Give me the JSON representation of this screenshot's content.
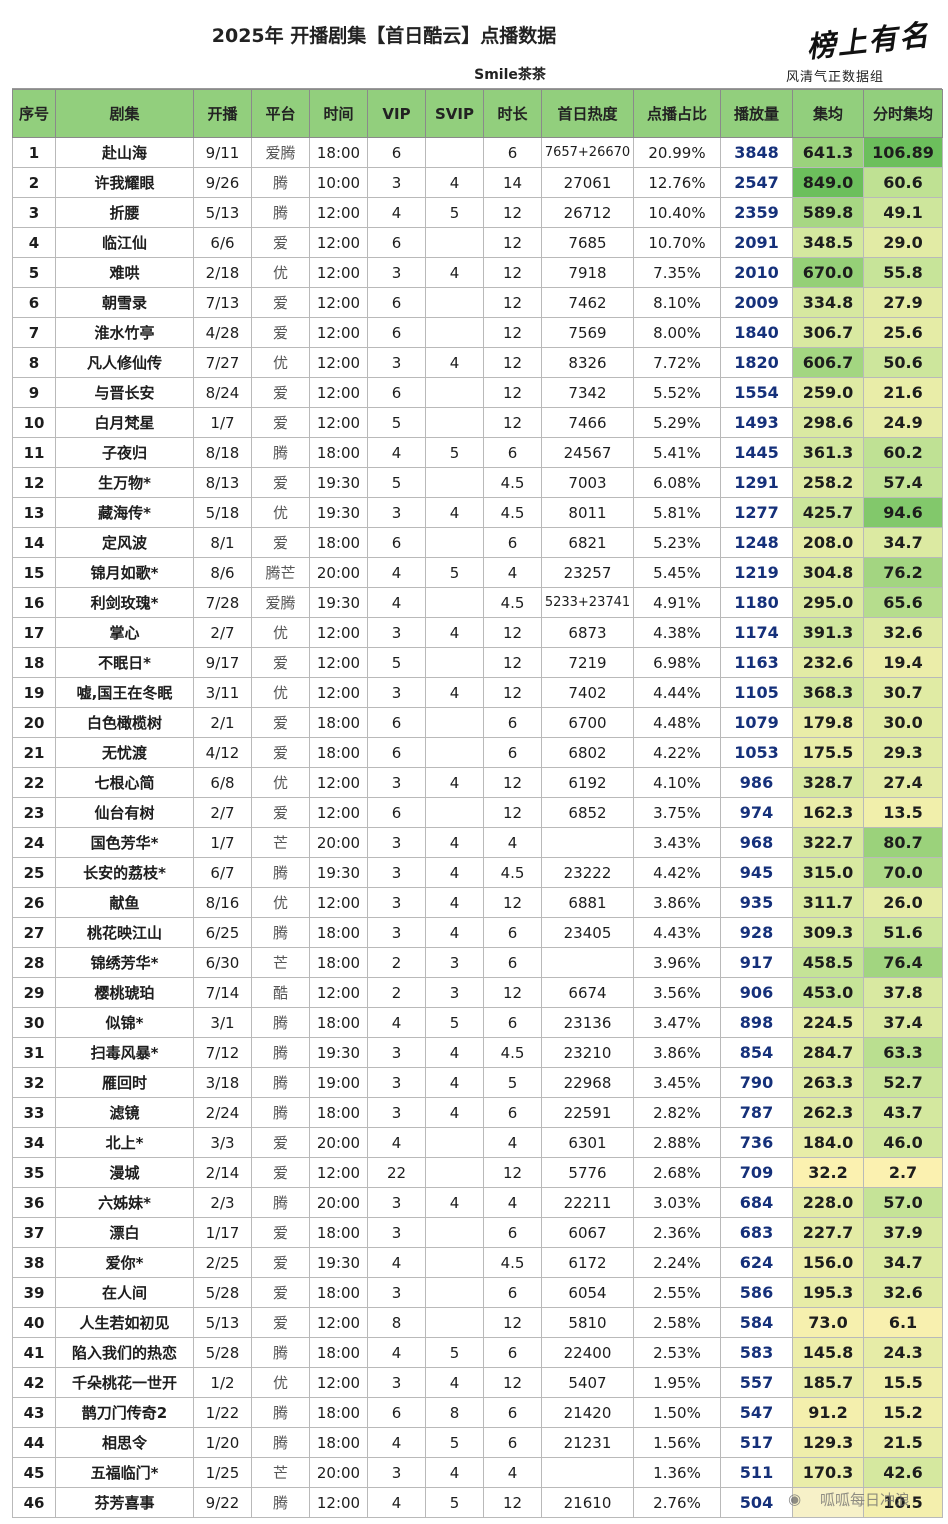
{
  "title": "2025年 开播剧集【首日酷云】点播数据",
  "subtitle": "Smile茶茶",
  "logo": {
    "main": "榜上有名",
    "sub": "风清气正数据组"
  },
  "watermark": "呱呱每日冲浪",
  "colors": {
    "header": "#92cf7d",
    "avg_high": "#3f9e43",
    "avg_low": "#fdf3b8",
    "plays_text": "#15307a"
  },
  "columns": [
    "序号",
    "剧集",
    "开播",
    "平台",
    "时间",
    "VIP",
    "SVIP",
    "时长",
    "首日热度",
    "点播占比",
    "播放量",
    "集均",
    "分时集均"
  ],
  "rows": [
    [
      "1",
      "赴山海",
      "9/11",
      "爱腾",
      "18:00",
      "6",
      "",
      "6",
      "7657+26670",
      "20.99%",
      "3848",
      "641.3",
      "106.89"
    ],
    [
      "2",
      "许我耀眼",
      "9/26",
      "腾",
      "10:00",
      "3",
      "4",
      "14",
      "27061",
      "12.76%",
      "2547",
      "849.0",
      "60.6"
    ],
    [
      "3",
      "折腰",
      "5/13",
      "腾",
      "12:00",
      "4",
      "5",
      "12",
      "26712",
      "10.40%",
      "2359",
      "589.8",
      "49.1"
    ],
    [
      "4",
      "临江仙",
      "6/6",
      "爱",
      "12:00",
      "6",
      "",
      "12",
      "7685",
      "10.70%",
      "2091",
      "348.5",
      "29.0"
    ],
    [
      "5",
      "难哄",
      "2/18",
      "优",
      "12:00",
      "3",
      "4",
      "12",
      "7918",
      "7.35%",
      "2010",
      "670.0",
      "55.8"
    ],
    [
      "6",
      "朝雪录",
      "7/13",
      "爱",
      "12:00",
      "6",
      "",
      "12",
      "7462",
      "8.10%",
      "2009",
      "334.8",
      "27.9"
    ],
    [
      "7",
      "淮水竹亭",
      "4/28",
      "爱",
      "12:00",
      "6",
      "",
      "12",
      "7569",
      "8.00%",
      "1840",
      "306.7",
      "25.6"
    ],
    [
      "8",
      "凡人修仙传",
      "7/27",
      "优",
      "12:00",
      "3",
      "4",
      "12",
      "8326",
      "7.72%",
      "1820",
      "606.7",
      "50.6"
    ],
    [
      "9",
      "与晋长安",
      "8/24",
      "爱",
      "12:00",
      "6",
      "",
      "12",
      "7342",
      "5.52%",
      "1554",
      "259.0",
      "21.6"
    ],
    [
      "10",
      "白月梵星",
      "1/7",
      "爱",
      "12:00",
      "5",
      "",
      "12",
      "7466",
      "5.29%",
      "1493",
      "298.6",
      "24.9"
    ],
    [
      "11",
      "子夜归",
      "8/18",
      "腾",
      "18:00",
      "4",
      "5",
      "6",
      "24567",
      "5.41%",
      "1445",
      "361.3",
      "60.2"
    ],
    [
      "12",
      "生万物*",
      "8/13",
      "爱",
      "19:30",
      "5",
      "",
      "4.5",
      "7003",
      "6.08%",
      "1291",
      "258.2",
      "57.4"
    ],
    [
      "13",
      "藏海传*",
      "5/18",
      "优",
      "19:30",
      "3",
      "4",
      "4.5",
      "8011",
      "5.81%",
      "1277",
      "425.7",
      "94.6"
    ],
    [
      "14",
      "定风波",
      "8/1",
      "爱",
      "18:00",
      "6",
      "",
      "6",
      "6821",
      "5.23%",
      "1248",
      "208.0",
      "34.7"
    ],
    [
      "15",
      "锦月如歌*",
      "8/6",
      "腾芒",
      "20:00",
      "4",
      "5",
      "4",
      "23257",
      "5.45%",
      "1219",
      "304.8",
      "76.2"
    ],
    [
      "16",
      "利剑玫瑰*",
      "7/28",
      "爱腾",
      "19:30",
      "4",
      "",
      "4.5",
      "5233+23741",
      "4.91%",
      "1180",
      "295.0",
      "65.6"
    ],
    [
      "17",
      "掌心",
      "2/7",
      "优",
      "12:00",
      "3",
      "4",
      "12",
      "6873",
      "4.38%",
      "1174",
      "391.3",
      "32.6"
    ],
    [
      "18",
      "不眠日*",
      "9/17",
      "爱",
      "12:00",
      "5",
      "",
      "12",
      "7219",
      "6.98%",
      "1163",
      "232.6",
      "19.4"
    ],
    [
      "19",
      "嘘,国王在冬眠",
      "3/11",
      "优",
      "12:00",
      "3",
      "4",
      "12",
      "7402",
      "4.44%",
      "1105",
      "368.3",
      "30.7"
    ],
    [
      "20",
      "白色橄榄树",
      "2/1",
      "爱",
      "18:00",
      "6",
      "",
      "6",
      "6700",
      "4.48%",
      "1079",
      "179.8",
      "30.0"
    ],
    [
      "21",
      "无忧渡",
      "4/12",
      "爱",
      "18:00",
      "6",
      "",
      "6",
      "6802",
      "4.22%",
      "1053",
      "175.5",
      "29.3"
    ],
    [
      "22",
      "七根心简",
      "6/8",
      "优",
      "12:00",
      "3",
      "4",
      "12",
      "6192",
      "4.10%",
      "986",
      "328.7",
      "27.4"
    ],
    [
      "23",
      "仙台有树",
      "2/7",
      "爱",
      "12:00",
      "6",
      "",
      "12",
      "6852",
      "3.75%",
      "974",
      "162.3",
      "13.5"
    ],
    [
      "24",
      "国色芳华*",
      "1/7",
      "芒",
      "20:00",
      "3",
      "4",
      "4",
      "",
      "3.43%",
      "968",
      "322.7",
      "80.7"
    ],
    [
      "25",
      "长安的荔枝*",
      "6/7",
      "腾",
      "19:30",
      "3",
      "4",
      "4.5",
      "23222",
      "4.42%",
      "945",
      "315.0",
      "70.0"
    ],
    [
      "26",
      "献鱼",
      "8/16",
      "优",
      "12:00",
      "3",
      "4",
      "12",
      "6881",
      "3.86%",
      "935",
      "311.7",
      "26.0"
    ],
    [
      "27",
      "桃花映江山",
      "6/25",
      "腾",
      "18:00",
      "3",
      "4",
      "6",
      "23405",
      "4.43%",
      "928",
      "309.3",
      "51.6"
    ],
    [
      "28",
      "锦绣芳华*",
      "6/30",
      "芒",
      "18:00",
      "2",
      "3",
      "6",
      "",
      "3.96%",
      "917",
      "458.5",
      "76.4"
    ],
    [
      "29",
      "樱桃琥珀",
      "7/14",
      "酷",
      "12:00",
      "2",
      "3",
      "12",
      "6674",
      "3.56%",
      "906",
      "453.0",
      "37.8"
    ],
    [
      "30",
      "似锦*",
      "3/1",
      "腾",
      "18:00",
      "4",
      "5",
      "6",
      "23136",
      "3.47%",
      "898",
      "224.5",
      "37.4"
    ],
    [
      "31",
      "扫毒风暴*",
      "7/12",
      "腾",
      "19:30",
      "3",
      "4",
      "4.5",
      "23210",
      "3.86%",
      "854",
      "284.7",
      "63.3"
    ],
    [
      "32",
      "雁回时",
      "3/18",
      "腾",
      "19:00",
      "3",
      "4",
      "5",
      "22968",
      "3.45%",
      "790",
      "263.3",
      "52.7"
    ],
    [
      "33",
      "滤镜",
      "2/24",
      "腾",
      "18:00",
      "3",
      "4",
      "6",
      "22591",
      "2.82%",
      "787",
      "262.3",
      "43.7"
    ],
    [
      "34",
      "北上*",
      "3/3",
      "爱",
      "20:00",
      "4",
      "",
      "4",
      "6301",
      "2.88%",
      "736",
      "184.0",
      "46.0"
    ],
    [
      "35",
      "漫城",
      "2/14",
      "爱",
      "12:00",
      "22",
      "",
      "12",
      "5776",
      "2.68%",
      "709",
      "32.2",
      "2.7"
    ],
    [
      "36",
      "六姊妹*",
      "2/3",
      "腾",
      "20:00",
      "3",
      "4",
      "4",
      "22211",
      "3.03%",
      "684",
      "228.0",
      "57.0"
    ],
    [
      "37",
      "漂白",
      "1/17",
      "爱",
      "18:00",
      "3",
      "",
      "6",
      "6067",
      "2.36%",
      "683",
      "227.7",
      "37.9"
    ],
    [
      "38",
      "爱你*",
      "2/25",
      "爱",
      "19:30",
      "4",
      "",
      "4.5",
      "6172",
      "2.24%",
      "624",
      "156.0",
      "34.7"
    ],
    [
      "39",
      "在人间",
      "5/28",
      "爱",
      "18:00",
      "3",
      "",
      "6",
      "6054",
      "2.55%",
      "586",
      "195.3",
      "32.6"
    ],
    [
      "40",
      "人生若如初见",
      "5/13",
      "爱",
      "12:00",
      "8",
      "",
      "12",
      "5810",
      "2.58%",
      "584",
      "73.0",
      "6.1"
    ],
    [
      "41",
      "陷入我们的热恋",
      "5/28",
      "腾",
      "18:00",
      "4",
      "5",
      "6",
      "22400",
      "2.53%",
      "583",
      "145.8",
      "24.3"
    ],
    [
      "42",
      "千朵桃花一世开",
      "1/2",
      "优",
      "12:00",
      "3",
      "4",
      "12",
      "5407",
      "1.95%",
      "557",
      "185.7",
      "15.5"
    ],
    [
      "43",
      "鹊刀门传奇2",
      "1/22",
      "腾",
      "18:00",
      "6",
      "8",
      "6",
      "21420",
      "1.50%",
      "547",
      "91.2",
      "15.2"
    ],
    [
      "44",
      "相思令",
      "1/20",
      "腾",
      "18:00",
      "4",
      "5",
      "6",
      "21231",
      "1.56%",
      "517",
      "129.3",
      "21.5"
    ],
    [
      "45",
      "五福临门*",
      "1/25",
      "芒",
      "20:00",
      "3",
      "4",
      "4",
      "",
      "1.36%",
      "511",
      "170.3",
      "42.6"
    ],
    [
      "46",
      "芬芳喜事",
      "9/22",
      "腾",
      "12:00",
      "4",
      "5",
      "12",
      "21610",
      "2.76%",
      "504",
      "",
      "10.5"
    ]
  ]
}
